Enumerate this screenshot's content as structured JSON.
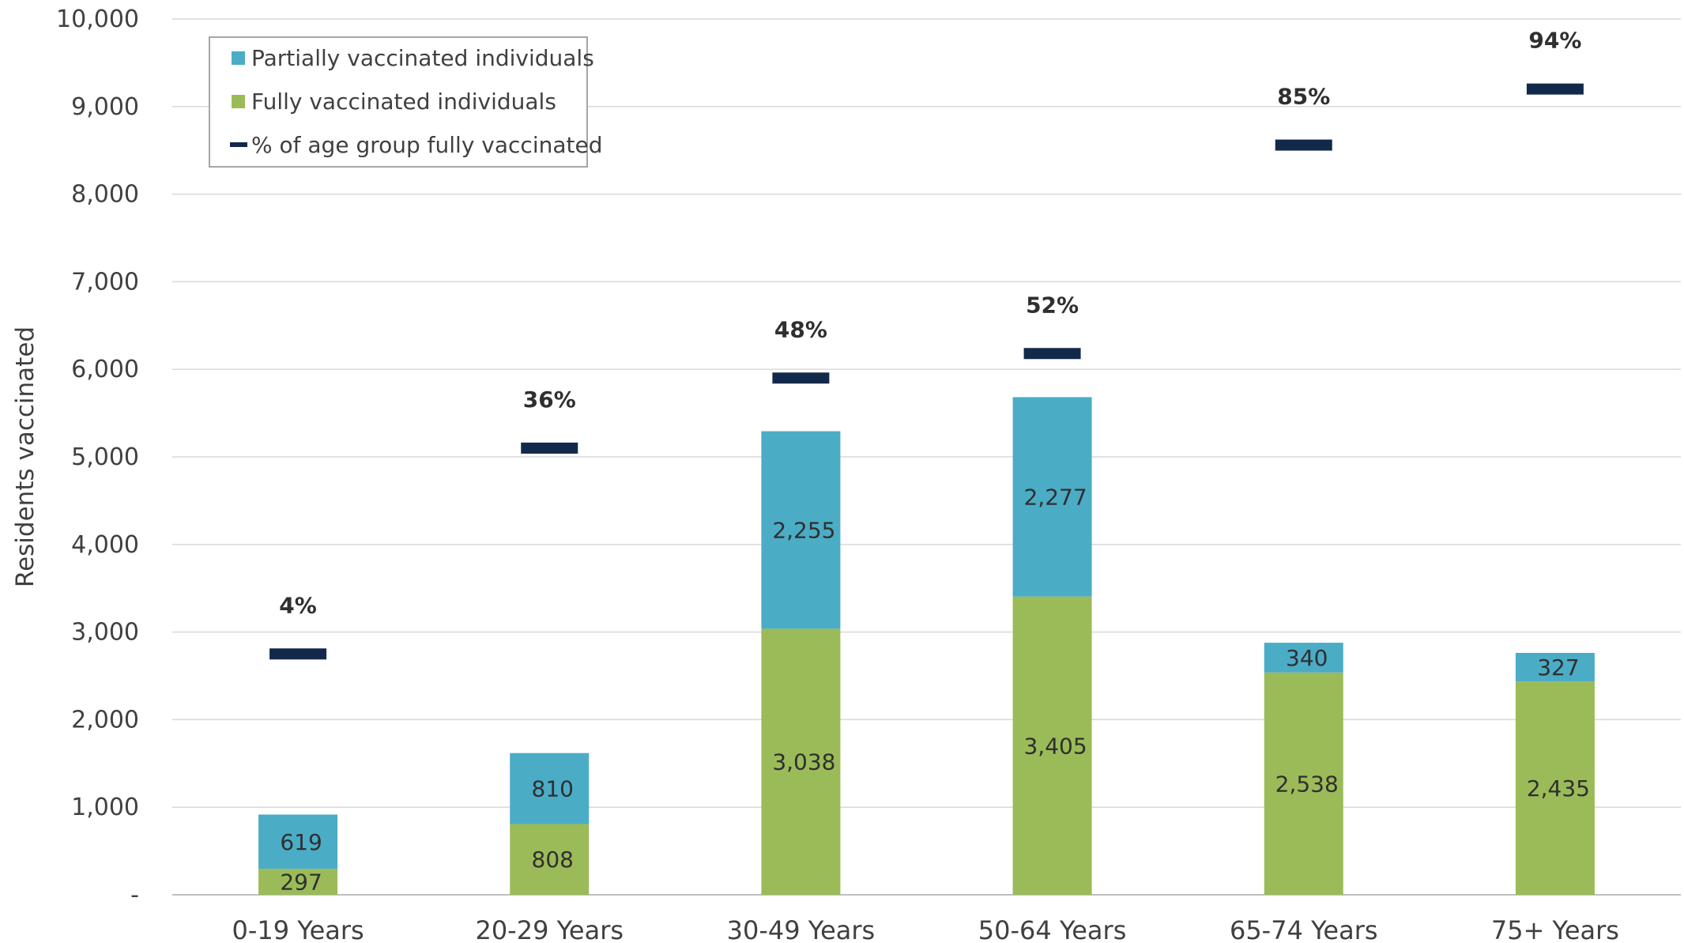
{
  "chart_data": {
    "type": "bar",
    "stacked": true,
    "ylabel": "Residents vaccinated",
    "xlabel": "",
    "ylim": [
      0,
      10000
    ],
    "yticks": [
      0,
      1000,
      2000,
      3000,
      4000,
      5000,
      6000,
      7000,
      8000,
      9000,
      10000
    ],
    "ytick_labels": [
      "-",
      "1,000",
      "2,000",
      "3,000",
      "4,000",
      "5,000",
      "6,000",
      "7,000",
      "8,000",
      "9,000",
      "10,000"
    ],
    "grid": true,
    "legend_position": "top-left",
    "categories": [
      "0-19 Years",
      "20-29 Years",
      "30-49 Years",
      "50-64 Years",
      "65-74 Years",
      "75+ Years"
    ],
    "series": [
      {
        "name": "Fully vaccinated individuals",
        "color": "#9bbb59",
        "values": [
          297,
          808,
          3038,
          3405,
          2538,
          2435
        ],
        "labels": [
          "297",
          "808",
          "3,038",
          "3,405",
          "2,538",
          "2,435"
        ]
      },
      {
        "name": "Partially vaccinated individuals",
        "color": "#4bacc6",
        "values": [
          619,
          810,
          2255,
          2277,
          340,
          327
        ],
        "labels": [
          "619",
          "810",
          "2,255",
          "2,277",
          "340",
          "327"
        ]
      }
    ],
    "marker_series": {
      "name": "% of age group fully vaccinated",
      "color": "#13294b",
      "plotted_values": [
        2750,
        5100,
        5900,
        6180,
        8560,
        9200
      ],
      "labels": [
        "4%",
        "36%",
        "48%",
        "52%",
        "85%",
        "94%"
      ]
    },
    "legend": [
      {
        "label": "Partially vaccinated individuals",
        "color": "#4bacc6",
        "shape": "square"
      },
      {
        "label": "Fully vaccinated individuals",
        "color": "#9bbb59",
        "shape": "square"
      },
      {
        "label": "% of age group fully vaccinated",
        "color": "#13294b",
        "shape": "dash"
      }
    ]
  }
}
